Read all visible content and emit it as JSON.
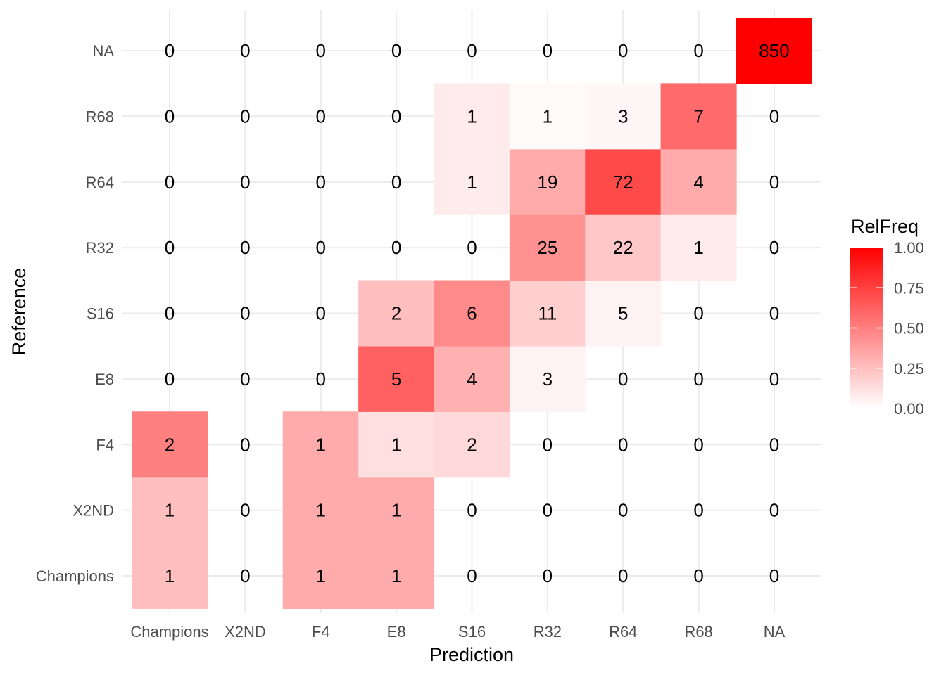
{
  "chart_data": {
    "type": "heatmap",
    "x_categories": [
      "Champions",
      "X2ND",
      "F4",
      "E8",
      "S16",
      "R32",
      "R64",
      "R68",
      "NA"
    ],
    "y_categories": [
      "Champions",
      "X2ND",
      "F4",
      "E8",
      "S16",
      "R32",
      "R64",
      "R68",
      "NA"
    ],
    "xlabel": "Prediction",
    "ylabel": "Reference",
    "legend": {
      "title": "RelFreq",
      "position": "right",
      "range": [
        0,
        1
      ],
      "ticks": [
        "0.00",
        "0.25",
        "0.50",
        "0.75",
        "1.00"
      ],
      "low_color": "#ffffff",
      "high_color": "#ff0000"
    },
    "counts": [
      [
        1,
        0,
        1,
        1,
        0,
        0,
        0,
        0,
        0
      ],
      [
        1,
        0,
        1,
        1,
        0,
        0,
        0,
        0,
        0
      ],
      [
        2,
        0,
        1,
        1,
        2,
        0,
        0,
        0,
        0
      ],
      [
        0,
        0,
        0,
        5,
        4,
        3,
        0,
        0,
        0
      ],
      [
        0,
        0,
        0,
        2,
        6,
        11,
        5,
        0,
        0
      ],
      [
        0,
        0,
        0,
        0,
        0,
        25,
        22,
        1,
        0
      ],
      [
        0,
        0,
        0,
        0,
        1,
        19,
        72,
        4,
        0
      ],
      [
        0,
        0,
        0,
        0,
        1,
        1,
        3,
        7,
        0
      ],
      [
        0,
        0,
        0,
        0,
        0,
        0,
        0,
        0,
        850
      ]
    ],
    "relfreq": [
      [
        0.25,
        0,
        0.33,
        0.33,
        0,
        0,
        0,
        0,
        0
      ],
      [
        0.25,
        0,
        0.33,
        0.33,
        0,
        0,
        0,
        0,
        0
      ],
      [
        0.5,
        0,
        0.33,
        0.125,
        0.15,
        0,
        0,
        0,
        0
      ],
      [
        0,
        0,
        0,
        0.625,
        0.31,
        0.05,
        0,
        0,
        0
      ],
      [
        0,
        0,
        0,
        0.25,
        0.46,
        0.19,
        0.05,
        0,
        0
      ],
      [
        0,
        0,
        0,
        0,
        0,
        0.43,
        0.22,
        0.08,
        0
      ],
      [
        0,
        0,
        0,
        0,
        0.08,
        0.33,
        0.71,
        0.33,
        0
      ],
      [
        0,
        0,
        0,
        0,
        0.08,
        0.02,
        0.03,
        0.58,
        0
      ],
      [
        0,
        0,
        0,
        0,
        0,
        0,
        0,
        0,
        1.0
      ]
    ],
    "grid": true
  }
}
